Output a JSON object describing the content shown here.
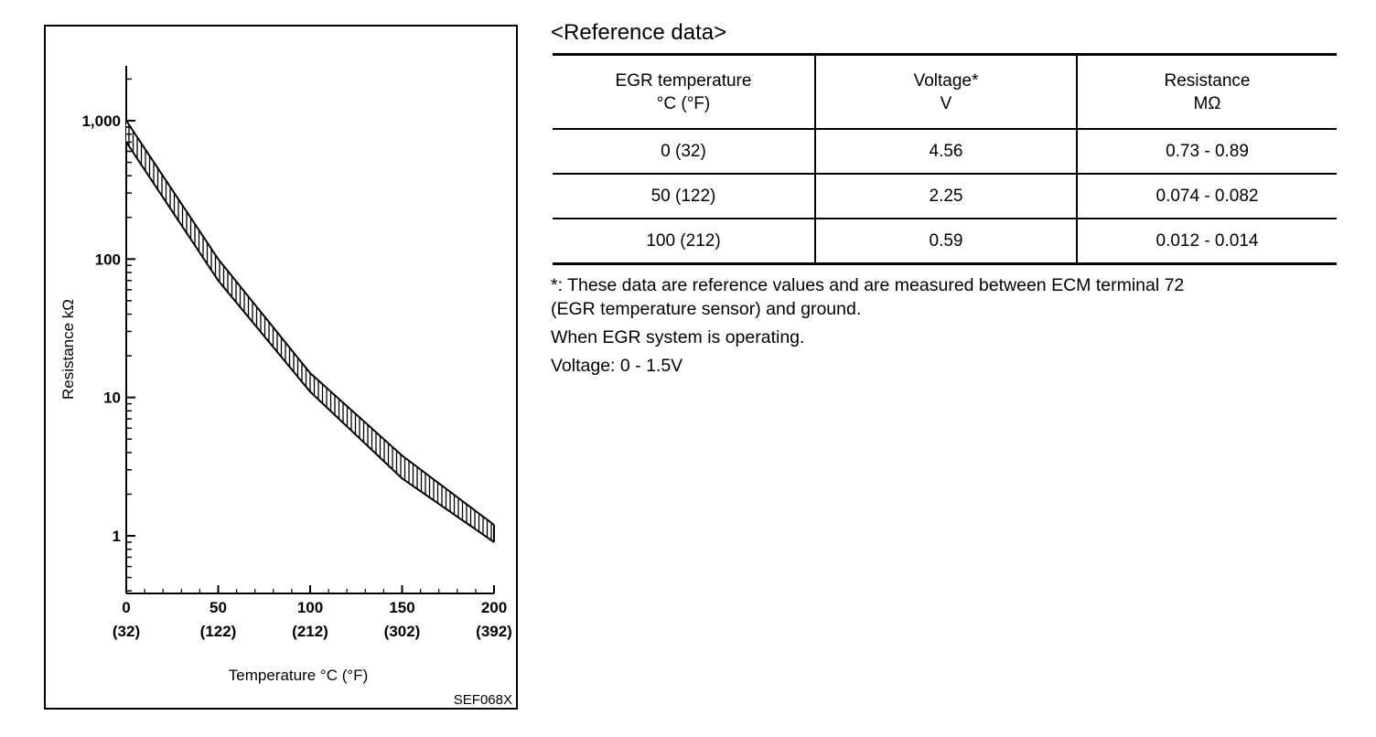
{
  "figure": {
    "code": "SEF068X",
    "chart_data": {
      "type": "area",
      "title": "",
      "xlabel": "Temperature °C (°F)",
      "ylabel": "Resistance kΩ",
      "yscale": "log",
      "xlim": [
        0,
        200
      ],
      "ylim": [
        0.4,
        2500
      ],
      "x_ticks": [
        {
          "value": 0,
          "label": "0",
          "label_f": "(32)"
        },
        {
          "value": 50,
          "label": "50",
          "label_f": "(122)"
        },
        {
          "value": 100,
          "label": "100",
          "label_f": "(212)"
        },
        {
          "value": 150,
          "label": "150",
          "label_f": "(302)"
        },
        {
          "value": 200,
          "label": "200",
          "label_f": "(392)"
        }
      ],
      "y_ticks": [
        {
          "value": 1,
          "label": "1"
        },
        {
          "value": 10,
          "label": "10"
        },
        {
          "value": 100,
          "label": "100"
        },
        {
          "value": 1000,
          "label": "1,000"
        }
      ],
      "grid": false,
      "series": [
        {
          "x": [
            0,
            50,
            100,
            150,
            200
          ],
          "values": [
            1000,
            100,
            15,
            3.8,
            1.2
          ]
        },
        {
          "x": [
            0,
            50,
            100,
            150,
            200
          ],
          "values": [
            700,
            70,
            11,
            2.6,
            0.9
          ]
        }
      ]
    }
  },
  "reference": {
    "title": "<Reference data>",
    "headers": [
      [
        "EGR temperature",
        "°C (°F)"
      ],
      [
        "Voltage*",
        "V"
      ],
      [
        "Resistance",
        "MΩ"
      ]
    ],
    "rows": [
      [
        "0 (32)",
        "4.56",
        "0.73 - 0.89"
      ],
      [
        "50 (122)",
        "2.25",
        "0.074 - 0.082"
      ],
      [
        "100 (212)",
        "0.59",
        "0.012 - 0.014"
      ]
    ],
    "notes": [
      "*: These data are reference values and are measured between ECM terminal 72",
      "(EGR temperature sensor) and ground.",
      "When EGR system is operating.",
      "Voltage: 0 - 1.5V"
    ]
  }
}
